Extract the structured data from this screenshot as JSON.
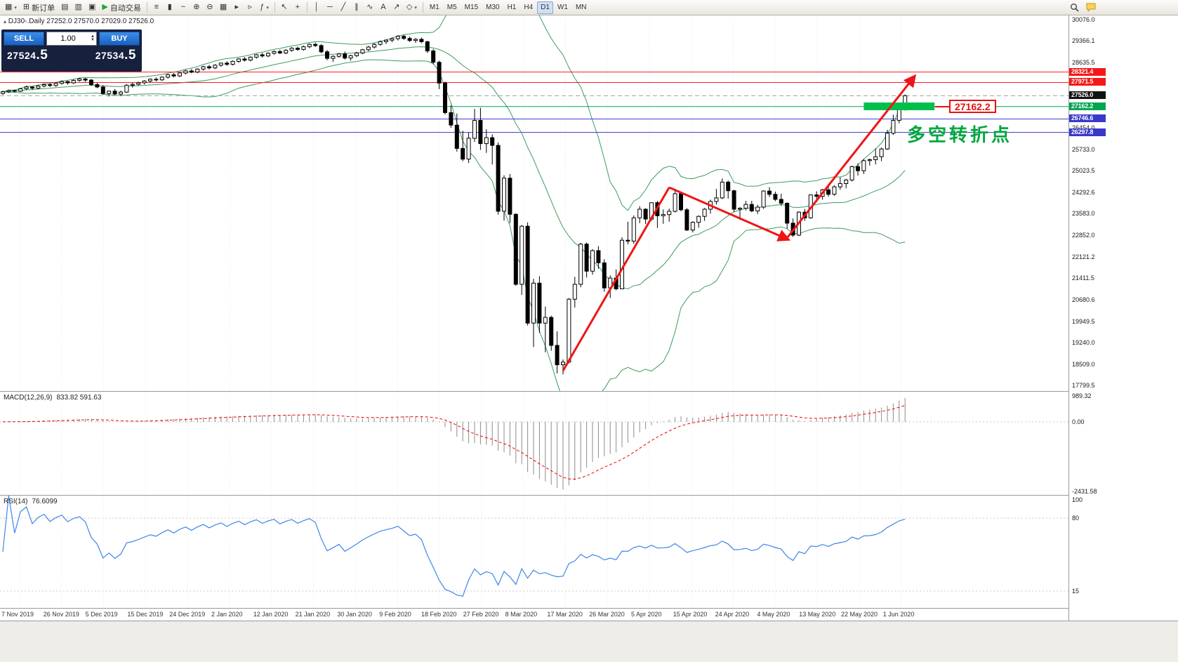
{
  "toolbar": {
    "groups": [
      [
        {
          "n": "new-chart-button",
          "g": "▦",
          "c": 1
        },
        {
          "n": "new-order-button",
          "g": "⊞",
          "l": "新订单"
        },
        {
          "n": "market-watch-button",
          "g": "▤"
        },
        {
          "n": "data-window-button",
          "g": "▥"
        },
        {
          "n": "navigator-button",
          "g": "▣"
        },
        {
          "n": "autotrade-button",
          "g": "▶",
          "l": "自动交易",
          "gl": "#1FA43C"
        }
      ],
      [
        {
          "n": "ohlc-bars-button",
          "g": "≡"
        },
        {
          "n": "candlestick-button",
          "g": "▮"
        },
        {
          "n": "line-chart-button",
          "g": "~"
        },
        {
          "n": "zoom-in-button",
          "g": "⊕"
        },
        {
          "n": "zoom-out-button",
          "g": "⊖"
        },
        {
          "n": "tile-windows-button",
          "g": "▦"
        },
        {
          "n": "auto-scroll-button",
          "g": "▸"
        },
        {
          "n": "chart-shift-button",
          "g": "▹"
        },
        {
          "n": "indicators-button",
          "g": "ƒ",
          "c": 1
        }
      ],
      [
        {
          "n": "cursor-button",
          "g": "↖"
        },
        {
          "n": "crosshair-button",
          "g": "+"
        }
      ],
      [
        {
          "n": "vertical-line-button",
          "g": "│"
        },
        {
          "n": "horizontal-line-button",
          "g": "─"
        },
        {
          "n": "trendline-button",
          "g": "╱"
        },
        {
          "n": "channel-button",
          "g": "∥"
        },
        {
          "n": "fibonacci-button",
          "g": "∿"
        },
        {
          "n": "text-button",
          "g": "A"
        },
        {
          "n": "arrow-object-button",
          "g": "↗"
        },
        {
          "n": "shapes-button",
          "g": "◇",
          "c": 1
        }
      ]
    ],
    "timeframes": [
      "M1",
      "M5",
      "M15",
      "M30",
      "H1",
      "H4",
      "D1",
      "W1",
      "MN"
    ],
    "active_timeframe": "D1"
  },
  "trade_panel": {
    "sell_label": "SELL",
    "buy_label": "BUY",
    "lot_value": "1.00",
    "sell_price": "27524.5",
    "buy_price": "27534.5"
  },
  "chart": {
    "collapse_glyph": "▴",
    "symbol_line": "DJ30-.Daily",
    "ohlc_text": "27252.0 27570.0 27029.0 27526.0",
    "levels": [
      {
        "price": 28321.4,
        "label": "28321.4",
        "line_color": "#FF1A1A",
        "badge_color": "#F51818",
        "style": "solid"
      },
      {
        "price": 27971.5,
        "label": "27971.5",
        "line_color": "#FF1A1A",
        "badge_color": "#F51818",
        "style": "solid"
      },
      {
        "price": 27526.0,
        "label": "27526.0",
        "line_color": "#A0A0A0",
        "badge_color": "#111111",
        "style": "dash"
      },
      {
        "price": 27162.2,
        "label": "27162.2",
        "line_color": "#00A650",
        "badge_color": "#00A650",
        "style": "solid"
      },
      {
        "price": 26746.6,
        "label": "26746.6",
        "line_color": "#4040D0",
        "badge_color": "#3838CC",
        "style": "solid"
      },
      {
        "price": 26297.8,
        "label": "26297.8",
        "line_color": "#4040D0",
        "badge_color": "#3838CC",
        "style": "solid"
      }
    ],
    "annotations": {
      "arrow_color": "#EE1515",
      "arrows": [
        [
          95,
          18300,
          113,
          24450,
          0
        ],
        [
          113,
          24450,
          133,
          22720,
          1
        ],
        [
          133,
          22760,
          154.5,
          28150,
          1
        ]
      ],
      "green_bar": {
        "from_index": 146,
        "to_index": 158,
        "price_top": 27300,
        "price_bottom": 27040,
        "color": "#00C04B"
      },
      "callout_text": "27162.2",
      "turning_point_text": "多空转折点"
    }
  },
  "axis": {
    "price_labels": [
      "30076.0",
      "29366.1",
      "28635.5",
      "26454.0",
      "25733.0",
      "25023.5",
      "24292.6",
      "23583.0",
      "22852.0",
      "22121.2",
      "21411.5",
      "20680.6",
      "19949.5",
      "19240.0",
      "18509.0",
      "17799.5"
    ]
  },
  "x_axis": {
    "dates": [
      "7 Nov 2019",
      "26 Nov 2019",
      "5 Dec 2019",
      "15 Dec 2019",
      "24 Dec 2019",
      "2 Jan 2020",
      "12 Jan 2020",
      "21 Jan 2020",
      "30 Jan 2020",
      "9 Feb 2020",
      "18 Feb 2020",
      "27 Feb 2020",
      "8 Mar 2020",
      "17 Mar 2020",
      "26 Mar 2020",
      "5 Apr 2020",
      "15 Apr 2020",
      "24 Apr 2020",
      "4 May 2020",
      "13 May 2020",
      "22 May 2020",
      "1 Jun 2020"
    ]
  },
  "chart_data": {
    "type": "candlestick+indicators",
    "main": {
      "type": "candlestick",
      "symbol": "DJ30-",
      "timeframe": "Daily",
      "price_top": 30220,
      "price_bottom": 17620,
      "bollinger": {
        "period": 20,
        "deviation": 2,
        "color": "#3E9B5E"
      },
      "candles": [
        [
          27600,
          27700,
          27560,
          27660
        ],
        [
          27660,
          27730,
          27620,
          27700
        ],
        [
          27700,
          27740,
          27630,
          27680
        ],
        [
          27680,
          27790,
          27650,
          27760
        ],
        [
          27760,
          27860,
          27720,
          27820
        ],
        [
          27820,
          27850,
          27720,
          27780
        ],
        [
          27780,
          27890,
          27750,
          27850
        ],
        [
          27850,
          27940,
          27810,
          27900
        ],
        [
          27900,
          27950,
          27820,
          27870
        ],
        [
          27870,
          27980,
          27830,
          27940
        ],
        [
          27940,
          28040,
          27900,
          28000
        ],
        [
          28000,
          28030,
          27900,
          27960
        ],
        [
          27960,
          28080,
          27920,
          28040
        ],
        [
          28040,
          28130,
          28000,
          28090
        ],
        [
          28090,
          28120,
          27990,
          28050
        ],
        [
          28050,
          28090,
          27860,
          27900
        ],
        [
          27900,
          27960,
          27780,
          27820
        ],
        [
          27820,
          27880,
          27560,
          27600
        ],
        [
          27600,
          27700,
          27500,
          27680
        ],
        [
          27680,
          27750,
          27550,
          27580
        ],
        [
          27580,
          27700,
          27520,
          27650
        ],
        [
          27650,
          27920,
          27620,
          27880
        ],
        [
          27880,
          27960,
          27800,
          27910
        ],
        [
          27910,
          28000,
          27860,
          27960
        ],
        [
          27960,
          28050,
          27900,
          28020
        ],
        [
          28020,
          28110,
          27970,
          28080
        ],
        [
          28080,
          28140,
          28010,
          28060
        ],
        [
          28060,
          28180,
          28020,
          28150
        ],
        [
          28150,
          28260,
          28100,
          28230
        ],
        [
          28230,
          28290,
          28140,
          28190
        ],
        [
          28190,
          28320,
          28150,
          28290
        ],
        [
          28290,
          28400,
          28240,
          28360
        ],
        [
          28360,
          28420,
          28280,
          28320
        ],
        [
          28320,
          28450,
          28280,
          28420
        ],
        [
          28420,
          28530,
          28370,
          28500
        ],
        [
          28500,
          28560,
          28410,
          28460
        ],
        [
          28460,
          28590,
          28420,
          28550
        ],
        [
          28550,
          28640,
          28500,
          28620
        ],
        [
          28620,
          28680,
          28530,
          28580
        ],
        [
          28580,
          28710,
          28540,
          28680
        ],
        [
          28680,
          28790,
          28630,
          28760
        ],
        [
          28760,
          28820,
          28670,
          28720
        ],
        [
          28720,
          28850,
          28680,
          28820
        ],
        [
          28820,
          28930,
          28770,
          28900
        ],
        [
          28900,
          28960,
          28810,
          28860
        ],
        [
          28860,
          28990,
          28820,
          28950
        ],
        [
          28950,
          29050,
          28900,
          29010
        ],
        [
          29010,
          29070,
          28920,
          28960
        ],
        [
          28960,
          29090,
          28920,
          29050
        ],
        [
          29050,
          29160,
          29000,
          29120
        ],
        [
          29120,
          29180,
          29030,
          29080
        ],
        [
          29080,
          29210,
          29040,
          29170
        ],
        [
          29170,
          29280,
          29120,
          29250
        ],
        [
          29250,
          29310,
          29160,
          29210
        ],
        [
          29210,
          29260,
          28950,
          29000
        ],
        [
          29000,
          29060,
          28720,
          28780
        ],
        [
          28780,
          28880,
          28660,
          28850
        ],
        [
          28850,
          28960,
          28800,
          28930
        ],
        [
          28930,
          29010,
          28740,
          28790
        ],
        [
          28790,
          28900,
          28700,
          28870
        ],
        [
          28870,
          29000,
          28820,
          28960
        ],
        [
          28960,
          29100,
          28920,
          29070
        ],
        [
          29070,
          29200,
          29020,
          29160
        ],
        [
          29160,
          29290,
          29110,
          29250
        ],
        [
          29250,
          29380,
          29200,
          29340
        ],
        [
          29340,
          29420,
          29260,
          29390
        ],
        [
          29390,
          29480,
          29320,
          29440
        ],
        [
          29440,
          29560,
          29380,
          29520
        ],
        [
          29520,
          29570,
          29400,
          29450
        ],
        [
          29450,
          29510,
          29330,
          29380
        ],
        [
          29380,
          29460,
          29300,
          29420
        ],
        [
          29420,
          29480,
          29290,
          29340
        ],
        [
          29340,
          29370,
          28960,
          29030
        ],
        [
          29030,
          29100,
          28580,
          28650
        ],
        [
          28650,
          28700,
          27750,
          27950
        ],
        [
          27950,
          28000,
          26900,
          26960
        ],
        [
          26960,
          27210,
          26450,
          26540
        ],
        [
          26540,
          26930,
          25650,
          25760
        ],
        [
          25760,
          26350,
          25330,
          25400
        ],
        [
          25400,
          26300,
          25270,
          26100
        ],
        [
          26100,
          27080,
          25980,
          26700
        ],
        [
          26700,
          27120,
          25710,
          25920
        ],
        [
          25920,
          26400,
          25610,
          26120
        ],
        [
          26120,
          26230,
          25220,
          25860
        ],
        [
          25860,
          25960,
          23540,
          23650
        ],
        [
          23650,
          24860,
          23340,
          24760
        ],
        [
          24760,
          24900,
          23250,
          23550
        ],
        [
          23550,
          23580,
          21150,
          21200
        ],
        [
          21200,
          23190,
          20850,
          23150
        ],
        [
          23150,
          23280,
          19820,
          19900
        ],
        [
          19900,
          21380,
          19100,
          21240
        ],
        [
          21240,
          21470,
          19570,
          19900
        ],
        [
          19900,
          20450,
          18920,
          20090
        ],
        [
          20090,
          20150,
          18970,
          19150
        ],
        [
          19150,
          19620,
          18210,
          18500
        ],
        [
          18500,
          18680,
          18180,
          18590
        ],
        [
          18590,
          20740,
          18550,
          20700
        ],
        [
          20700,
          21450,
          20420,
          21200
        ],
        [
          21200,
          22590,
          21100,
          22550
        ],
        [
          22550,
          22600,
          21430,
          21640
        ],
        [
          21640,
          22380,
          21520,
          22330
        ],
        [
          22330,
          22480,
          21720,
          21920
        ],
        [
          21920,
          22040,
          20950,
          21080
        ],
        [
          21080,
          21500,
          20740,
          21410
        ],
        [
          21410,
          21700,
          21000,
          21050
        ],
        [
          21050,
          22780,
          21040,
          22680
        ],
        [
          22680,
          23300,
          22540,
          22650
        ],
        [
          22650,
          23510,
          22560,
          23430
        ],
        [
          23430,
          23820,
          23250,
          23720
        ],
        [
          23720,
          23750,
          23220,
          23390
        ],
        [
          23390,
          23950,
          23330,
          23940
        ],
        [
          23940,
          24000,
          23090,
          23500
        ],
        [
          23500,
          23710,
          23230,
          23540
        ],
        [
          23540,
          23740,
          23300,
          23650
        ],
        [
          23650,
          24360,
          23610,
          24240
        ],
        [
          24240,
          24260,
          23650,
          23700
        ],
        [
          23700,
          23760,
          22990,
          23020
        ],
        [
          23020,
          23320,
          22940,
          23280
        ],
        [
          23280,
          23510,
          23100,
          23480
        ],
        [
          23480,
          23760,
          23330,
          23720
        ],
        [
          23720,
          24040,
          23570,
          23980
        ],
        [
          23980,
          24400,
          23880,
          24100
        ],
        [
          24100,
          24750,
          24060,
          24630
        ],
        [
          24630,
          24680,
          24070,
          24340
        ],
        [
          24340,
          24370,
          23620,
          23720
        ],
        [
          23720,
          23790,
          23360,
          23750
        ],
        [
          23750,
          24000,
          23680,
          23880
        ],
        [
          23880,
          24000,
          23620,
          23660
        ],
        [
          23660,
          23870,
          23560,
          23790
        ],
        [
          23790,
          24350,
          23730,
          24330
        ],
        [
          24330,
          24460,
          24130,
          24220
        ],
        [
          24220,
          24310,
          23990,
          24050
        ],
        [
          24050,
          24240,
          23830,
          23920
        ],
        [
          23920,
          23950,
          23070,
          23250
        ],
        [
          23250,
          23410,
          22790,
          22850
        ],
        [
          22850,
          23650,
          22820,
          23620
        ],
        [
          23620,
          23730,
          23330,
          23430
        ],
        [
          23430,
          24210,
          23400,
          24200
        ],
        [
          24200,
          24320,
          23960,
          24150
        ],
        [
          24150,
          24400,
          24040,
          24370
        ],
        [
          24370,
          24480,
          24140,
          24220
        ],
        [
          24220,
          24520,
          24170,
          24470
        ],
        [
          24470,
          24790,
          24370,
          24580
        ],
        [
          24580,
          24740,
          24420,
          24700
        ],
        [
          24700,
          25180,
          24650,
          25150
        ],
        [
          25150,
          25260,
          24850,
          25010
        ],
        [
          25010,
          25400,
          24900,
          25350
        ],
        [
          25350,
          25420,
          25180,
          25380
        ],
        [
          25380,
          25760,
          25220,
          25480
        ],
        [
          25480,
          25790,
          25330,
          25740
        ],
        [
          25740,
          26380,
          25710,
          26270
        ],
        [
          26270,
          26890,
          26210,
          26700
        ],
        [
          26700,
          27300,
          26600,
          27252
        ],
        [
          27252,
          27570,
          27029,
          27526
        ]
      ]
    },
    "macd": {
      "type": "line+histogram",
      "label": "MACD(12,26,9)",
      "value_text": "833.82 591.63",
      "params": [
        12,
        26,
        9
      ],
      "range": [
        -2550,
        1050
      ],
      "axis_labels": [
        "989.32",
        "0.00",
        "-2431.58"
      ]
    },
    "rsi": {
      "type": "line",
      "label": "RSI(14)",
      "value_text": "76.6099",
      "period": 14,
      "levels": [
        80,
        15
      ],
      "range": [
        0,
        100
      ],
      "axis_labels": [
        "100",
        "80",
        "15"
      ]
    }
  }
}
